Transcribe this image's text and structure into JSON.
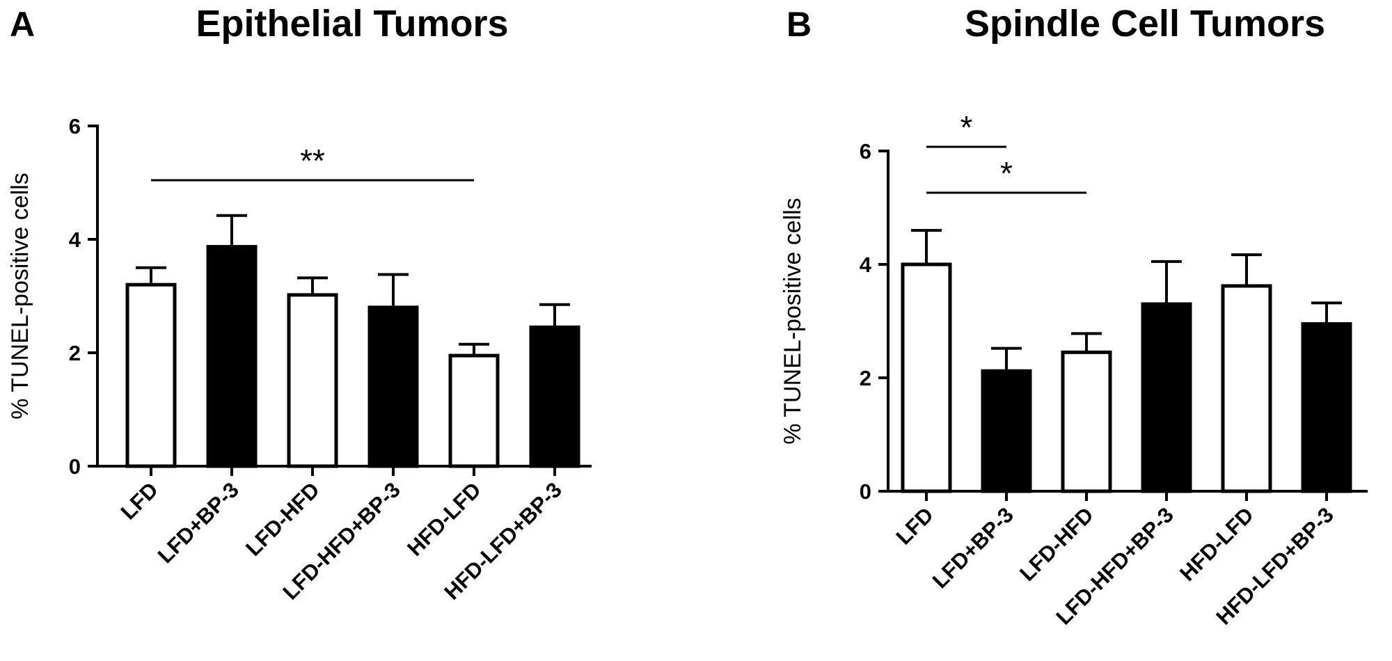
{
  "chart_data": [
    {
      "type": "bar",
      "panel_label": "A",
      "title": "Epithelial Tumors",
      "y_label": "% TUNEL-positive cells",
      "categories": [
        "LFD",
        "LFD+BP-3",
        "LFD-HFD",
        "LFD-HFD+BP-3",
        "HFD-LFD",
        "HFD-LFD+BP-3"
      ],
      "values": [
        3.2,
        3.87,
        3.02,
        2.8,
        1.95,
        2.45
      ],
      "errors": [
        0.3,
        0.55,
        0.3,
        0.58,
        0.2,
        0.4
      ],
      "colors": [
        "#ffffff",
        "#000000",
        "#ffffff",
        "#000000",
        "#ffffff",
        "#000000"
      ],
      "ylim": [
        0,
        6
      ],
      "yticks": [
        0,
        2,
        4,
        6
      ],
      "significance": [
        {
          "label": "**",
          "from": "LFD",
          "to": "HFD-LFD"
        }
      ]
    },
    {
      "type": "bar",
      "panel_label": "B",
      "title": "Spindle Cell Tumors",
      "y_label": "% TUNEL-positive cells",
      "categories": [
        "LFD",
        "LFD+BP-3",
        "LFD-HFD",
        "LFD-HFD+BP-3",
        "HFD-LFD",
        "HFD-LFD+BP-3"
      ],
      "values": [
        4.0,
        2.12,
        2.45,
        3.3,
        3.62,
        2.95
      ],
      "errors": [
        0.6,
        0.4,
        0.33,
        0.75,
        0.55,
        0.37
      ],
      "colors": [
        "#ffffff",
        "#000000",
        "#ffffff",
        "#000000",
        "#ffffff",
        "#000000"
      ],
      "ylim": [
        0,
        6
      ],
      "yticks": [
        0,
        2,
        4,
        6
      ],
      "significance": [
        {
          "label": "*",
          "from": "LFD",
          "to": "LFD+BP-3"
        },
        {
          "label": "*",
          "from": "LFD",
          "to": "LFD-HFD"
        }
      ]
    }
  ]
}
